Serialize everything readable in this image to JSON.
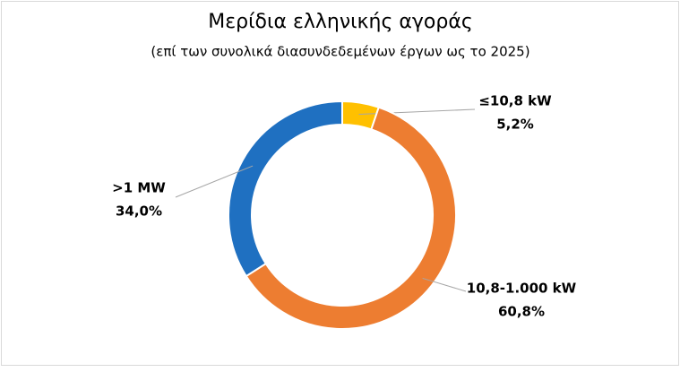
{
  "chart_data": {
    "type": "donut",
    "title": "Μερίδια ελληνικής αγοράς",
    "subtitle": "(επί των συνολικά διασυνδεδεμένων έργων ως το 2025)",
    "categories": [
      "≤10,8 kW",
      "10,8-1.000 kW",
      ">1 MW"
    ],
    "values": [
      5.2,
      60.8,
      34.0
    ],
    "value_labels": [
      "5,2%",
      "60,8%",
      "34,0%"
    ],
    "colors": [
      "#FFC000",
      "#ED7D31",
      "#1F70C1"
    ]
  }
}
